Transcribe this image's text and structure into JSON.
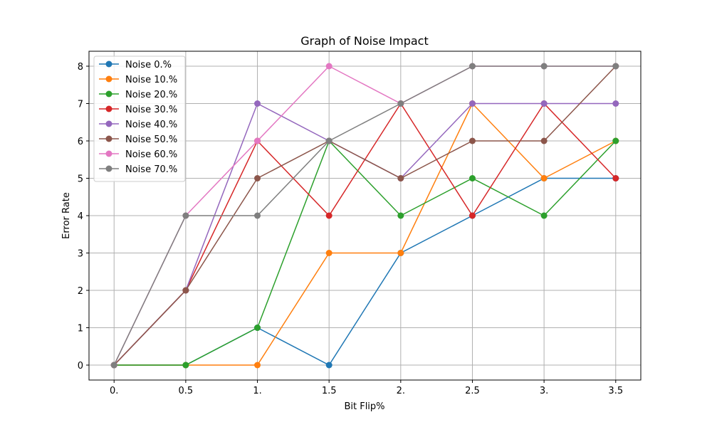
{
  "chart_data": {
    "type": "line",
    "title": "Graph of Noise Impact",
    "xlabel": "Bit Flip%",
    "ylabel": "Error Rate",
    "x": [
      0,
      0.5,
      1,
      1.5,
      2,
      2.5,
      3,
      3.5
    ],
    "x_tick_labels": [
      "0.",
      "0.5",
      "1.",
      "1.5",
      "2.",
      "2.5",
      "3.",
      "3.5"
    ],
    "y_ticks": [
      0,
      1,
      2,
      3,
      4,
      5,
      6,
      7,
      8
    ],
    "y_tick_labels": [
      "0",
      "1",
      "2",
      "3",
      "4",
      "5",
      "6",
      "7",
      "8"
    ],
    "xlim": [
      -0.175,
      3.675
    ],
    "ylim": [
      -0.4,
      8.4
    ],
    "grid": true,
    "legend_position": "top-left",
    "series": [
      {
        "name": "Noise 0.%",
        "color": "#1f77b4",
        "values": [
          0,
          0,
          1,
          0,
          3,
          4,
          5,
          5
        ]
      },
      {
        "name": "Noise 10.%",
        "color": "#ff7f0e",
        "values": [
          0,
          0,
          0,
          3,
          3,
          7,
          5,
          6
        ]
      },
      {
        "name": "Noise 20.%",
        "color": "#2ca02c",
        "values": [
          0,
          0,
          1,
          6,
          4,
          5,
          4,
          6
        ]
      },
      {
        "name": "Noise 30.%",
        "color": "#d62728",
        "values": [
          0,
          2,
          6,
          4,
          7,
          4,
          7,
          5
        ]
      },
      {
        "name": "Noise 40.%",
        "color": "#9467bd",
        "values": [
          0,
          2,
          7,
          6,
          5,
          7,
          7,
          7
        ]
      },
      {
        "name": "Noise 50.%",
        "color": "#8c564b",
        "values": [
          0,
          2,
          5,
          6,
          5,
          6,
          6,
          8
        ]
      },
      {
        "name": "Noise 60.%",
        "color": "#e377c2",
        "values": [
          0,
          4,
          6,
          8,
          7,
          8,
          8,
          8
        ]
      },
      {
        "name": "Noise 70.%",
        "color": "#7f7f7f",
        "values": [
          0,
          4,
          4,
          6,
          7,
          8,
          8,
          8
        ]
      }
    ]
  }
}
